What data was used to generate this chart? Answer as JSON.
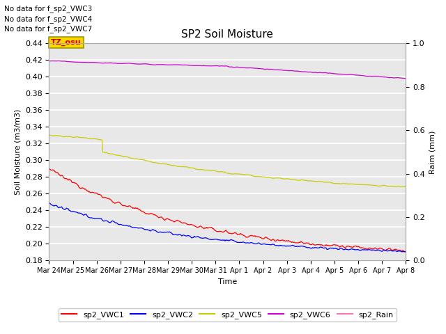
{
  "title": "SP2 Soil Moisture",
  "ylabel_left": "Soil Moisture (m3/m3)",
  "ylabel_right": "Raim (mm)",
  "xlabel": "Time",
  "no_data_texts": [
    "No data for f_sp2_VWC3",
    "No data for f_sp2_VWC4",
    "No data for f_sp2_VWC7"
  ],
  "tz_label": "TZ_osu",
  "tz_bg": "#FFD700",
  "tz_fg": "#CC0000",
  "ylim_left": [
    0.18,
    0.44
  ],
  "ylim_right": [
    0.0,
    1.0
  ],
  "tick_labels": [
    "Mar 24",
    "Mar 25",
    "Mar 26",
    "Mar 27",
    "Mar 28",
    "Mar 29",
    "Mar 30",
    "Mar 31",
    "Apr 1",
    "Apr 2",
    "Apr 3",
    "Apr 4",
    "Apr 5",
    "Apr 6",
    "Apr 7",
    "Apr 8"
  ],
  "background_color": "#e8e8e8",
  "grid_color": "#ffffff",
  "vwc1_color": "#ff0000",
  "vwc2_color": "#0000ff",
  "vwc5_color": "#cccc00",
  "vwc6_color": "#cc00cc",
  "rain_color": "#ff77bb",
  "legend_items": [
    {
      "label": "sp2_VWC1",
      "color": "#ff0000"
    },
    {
      "label": "sp2_VWC2",
      "color": "#0000ff"
    },
    {
      "label": "sp2_VWC5",
      "color": "#cccc00"
    },
    {
      "label": "sp2_VWC6",
      "color": "#cc00cc"
    },
    {
      "label": "sp2_Rain",
      "color": "#ff77bb"
    }
  ]
}
